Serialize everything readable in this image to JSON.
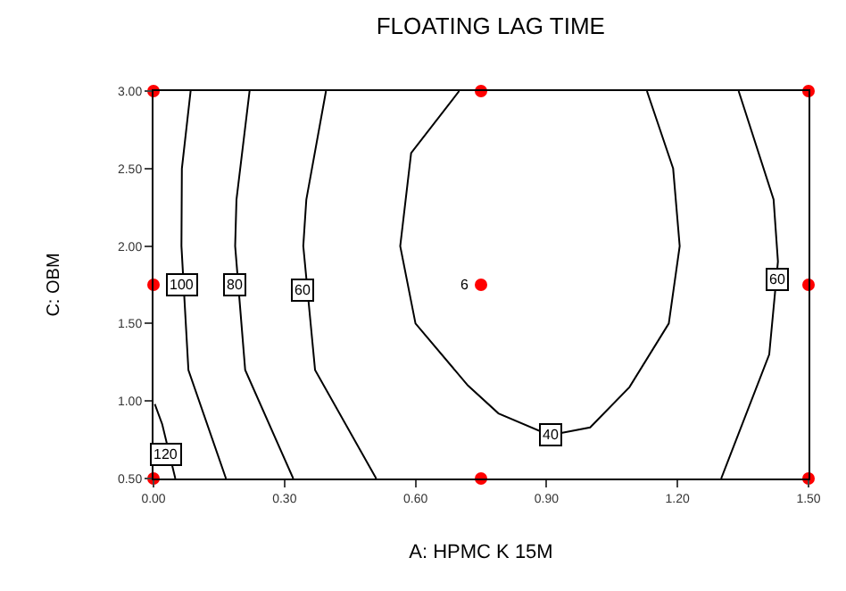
{
  "chart_data": {
    "type": "line",
    "title": "FLOATING LAG TIME",
    "xlabel": "A: HPMC K 15M",
    "ylabel": "C: OBM",
    "xlim": [
      0,
      1.5
    ],
    "ylim": [
      0.5,
      3.0
    ],
    "xticks": [
      {
        "value": 0,
        "label": "0.00"
      },
      {
        "value": 0.3,
        "label": "0.30"
      },
      {
        "value": 0.6,
        "label": "0.60"
      },
      {
        "value": 0.9,
        "label": "0.90"
      },
      {
        "value": 1.2,
        "label": "1.20"
      },
      {
        "value": 1.5,
        "label": "1.50"
      }
    ],
    "yticks": [
      {
        "value": 0.5,
        "label": "0.50"
      },
      {
        "value": 1.0,
        "label": "1.00"
      },
      {
        "value": 1.5,
        "label": "1.50"
      },
      {
        "value": 2.0,
        "label": "2.00"
      },
      {
        "value": 2.5,
        "label": "2.50"
      },
      {
        "value": 3.0,
        "label": "3.00"
      }
    ],
    "series": [
      {
        "color": "#000000",
        "x": [
          0.7,
          0.59,
          0.565,
          0.6,
          0.72,
          0.79,
          0.907,
          1.0,
          1.09,
          1.18,
          1.205,
          1.19,
          1.13
        ],
        "values": [
          3.0,
          2.6,
          2.0,
          1.5,
          1.1,
          0.92,
          0.78,
          0.83,
          1.09,
          1.5,
          2.0,
          2.5,
          3.0
        ]
      },
      {
        "color": "#000000",
        "x": [
          0.395,
          0.35,
          0.343,
          0.37,
          0.51
        ],
        "values": [
          3.0,
          2.3,
          2.0,
          1.2,
          0.5
        ]
      },
      {
        "color": "#000000",
        "x": [
          1.34,
          1.42,
          1.43,
          1.41,
          1.3
        ],
        "values": [
          3.0,
          2.3,
          1.9,
          1.3,
          0.5
        ]
      },
      {
        "color": "#000000",
        "x": [
          0.22,
          0.19,
          0.187,
          0.21,
          0.32
        ],
        "values": [
          3.0,
          2.3,
          2.0,
          1.2,
          0.5
        ]
      },
      {
        "color": "#000000",
        "x": [
          0.085,
          0.065,
          0.064,
          0.08,
          0.166
        ],
        "values": [
          3.0,
          2.5,
          2.0,
          1.2,
          0.5
        ]
      },
      {
        "color": "#000000",
        "x": [
          0.003,
          0.02,
          0.05
        ],
        "values": [
          0.98,
          0.85,
          0.5
        ]
      },
      {
        "type": "scatter",
        "color": "#ff0000",
        "marker": "circle",
        "x": [
          0,
          0.75,
          1.5,
          0,
          0.75,
          1.5,
          0,
          0.75,
          1.5
        ],
        "values": [
          3.0,
          3.0,
          3.0,
          1.75,
          1.75,
          1.75,
          0.5,
          0.5,
          0.5
        ]
      }
    ],
    "annotations": [
      {
        "text": "40",
        "x": 0.91,
        "y": 0.78
      },
      {
        "text": "60",
        "x": 0.343,
        "y": 1.72
      },
      {
        "text": "60",
        "x": 1.43,
        "y": 1.78
      },
      {
        "text": "80",
        "x": 0.187,
        "y": 1.75
      },
      {
        "text": "100",
        "x": 0.064,
        "y": 1.75
      },
      {
        "text": "120",
        "x": 0.03,
        "y": 0.65
      },
      {
        "text": "6",
        "x": 0.75,
        "y": 1.75
      }
    ]
  }
}
